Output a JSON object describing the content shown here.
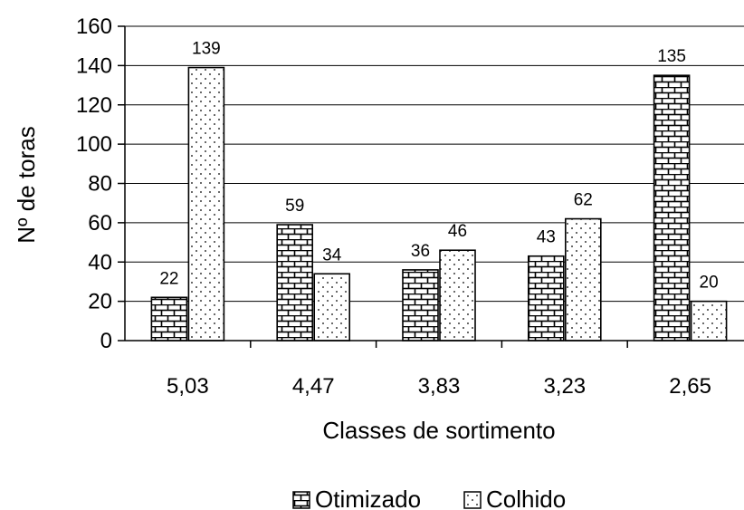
{
  "chart_data": {
    "type": "bar",
    "categories": [
      "5,03",
      "4,47",
      "3,83",
      "3,23",
      "2,65"
    ],
    "series": [
      {
        "name": "Otimizado",
        "values": [
          22,
          59,
          36,
          43,
          135
        ],
        "pattern": "brick"
      },
      {
        "name": "Colhido",
        "values": [
          139,
          34,
          46,
          62,
          20
        ],
        "pattern": "dots"
      }
    ],
    "xlabel": "Classes de sortimento",
    "ylabel": "Nº de toras",
    "ylim": [
      0,
      160
    ],
    "yticks": [
      0,
      20,
      40,
      60,
      80,
      100,
      120,
      140,
      160
    ],
    "grid": true,
    "legend": "bottom"
  }
}
